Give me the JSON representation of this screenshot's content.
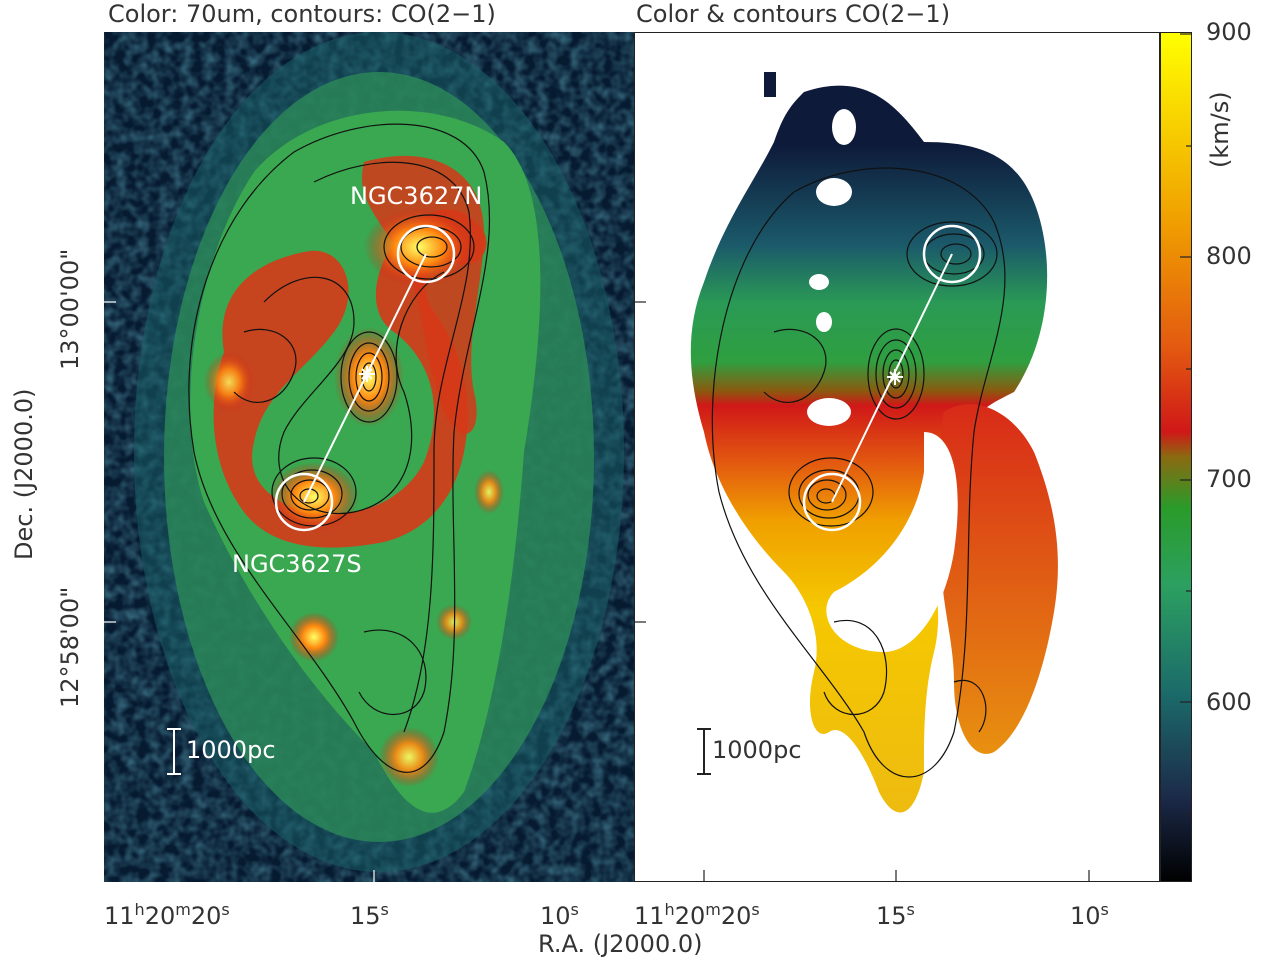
{
  "panels": {
    "left": {
      "title": "Color: 70um, contours: CO(2−1)",
      "label_north": "NGC3627N",
      "label_south": "NGC3627S",
      "scalebar": "1000pc"
    },
    "right": {
      "title": "Color & contours CO(2−1)",
      "scalebar": "1000pc"
    }
  },
  "axes": {
    "xlabel": "R.A. (J2000.0)",
    "ylabel": "Dec. (J2000.0)",
    "ra_ticks": {
      "left": [
        {
          "h": "11",
          "m": "20",
          "s": "20"
        },
        {
          "s": "15"
        },
        {
          "s": "10"
        }
      ],
      "right": [
        {
          "h": "11",
          "m": "20",
          "s": "20"
        },
        {
          "s": "15"
        },
        {
          "s": "10"
        }
      ]
    },
    "dec_ticks": [
      "13°00'00\"",
      "12°58'00\""
    ]
  },
  "colorbar": {
    "unit": "(km/s)",
    "ticks": [
      "900",
      "800",
      "700",
      "600"
    ],
    "colors": [
      "#000000",
      "#1c2b4a",
      "#1b6a6a",
      "#2ca060",
      "#2a9b2a",
      "#8a6a10",
      "#d01818",
      "#e35a10",
      "#f0a000",
      "#ffff00"
    ]
  }
}
